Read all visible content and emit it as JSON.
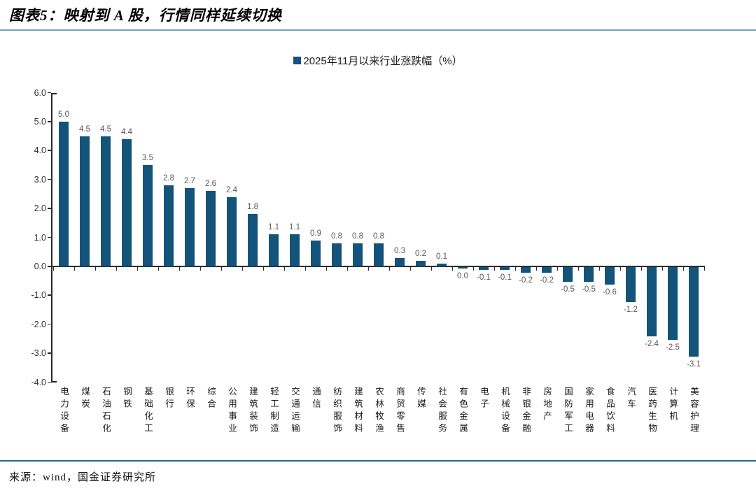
{
  "header": {
    "title": "图表5：映射到 A 股，行情同样延续切换"
  },
  "legend": {
    "label": "2025年11月以来行业涨跌幅（%）"
  },
  "footer": {
    "source": "来源：wind，国金证券研究所"
  },
  "colors": {
    "bar": "#14537A",
    "legend_marker": "#14537A",
    "value_label": "#595959",
    "axis": "#2b2b2b",
    "title_underline": "#72A3C4",
    "footer_divider": "#26698E"
  },
  "chart_data": {
    "type": "bar",
    "title": "2025年11月以来行业涨跌幅（%）",
    "categories": [
      "电力设备",
      "煤炭",
      "石油石化",
      "钢铁",
      "基础化工",
      "银行",
      "环保",
      "综合",
      "公用事业",
      "建筑装饰",
      "轻工制造",
      "交通运输",
      "通信",
      "纺织服饰",
      "建筑材料",
      "农林牧渔",
      "商贸零售",
      "传媒",
      "社会服务",
      "有色金属",
      "电子",
      "机械设备",
      "非银金融",
      "房地产",
      "国防军工",
      "家用电器",
      "食品饮料",
      "汽车",
      "医药生物",
      "计算机",
      "美容护理"
    ],
    "values": [
      5.0,
      4.5,
      4.5,
      4.4,
      3.5,
      2.8,
      2.7,
      2.6,
      2.4,
      1.8,
      1.1,
      1.1,
      0.9,
      0.8,
      0.8,
      0.8,
      0.3,
      0.2,
      0.1,
      0.0,
      -0.1,
      -0.1,
      -0.2,
      -0.2,
      -0.5,
      -0.5,
      -0.6,
      -1.2,
      -2.4,
      -2.5,
      -3.1
    ],
    "xlabel": "",
    "ylabel": "",
    "ylim": [
      -4.0,
      6.0
    ],
    "ytick_step": 1.0,
    "grid": false,
    "legend_position": "top-center",
    "value_labels_shown": true
  }
}
